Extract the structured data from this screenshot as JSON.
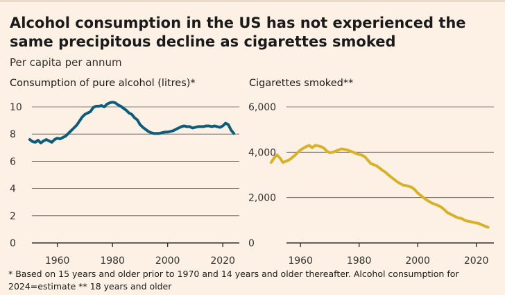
{
  "title": "Alcohol consumption in the US has not experienced the same precipitous decline as cigarettes smoked",
  "subtitle": "Per capita per annum",
  "footnote": {
    "line1": "* Based on 15 years and older prior to 1970 and 14 years and older thereafter. Alcohol consumption for",
    "line2": "2024=estimate  ** 18 years and older"
  },
  "colors": {
    "alcohol": "#0d5c7a",
    "cigarettes": "#d8b12a",
    "background": "#fdf1e5"
  },
  "chart_data": [
    {
      "type": "line",
      "title": "Consumption of pure alcohol (litres)*",
      "xlabel": "",
      "ylabel": "",
      "xlim": [
        1946,
        2026
      ],
      "ylim": [
        0,
        10
      ],
      "x_ticks": [
        1960,
        1980,
        2000,
        2020
      ],
      "x_tick_labels": [
        "1960",
        "1980",
        "2000",
        "2020"
      ],
      "y_ticks": [
        0,
        2,
        4,
        6,
        8,
        10
      ],
      "y_tick_labels": [
        "0",
        "2",
        "4",
        "6",
        "8",
        "10"
      ],
      "series": [
        {
          "name": "Alcohol",
          "x": [
            1950,
            1951,
            1952,
            1953,
            1954,
            1955,
            1956,
            1957,
            1958,
            1959,
            1960,
            1961,
            1962,
            1963,
            1964,
            1965,
            1966,
            1967,
            1968,
            1969,
            1970,
            1971,
            1972,
            1973,
            1974,
            1975,
            1976,
            1977,
            1978,
            1979,
            1980,
            1981,
            1982,
            1983,
            1984,
            1985,
            1986,
            1987,
            1988,
            1989,
            1990,
            1991,
            1992,
            1993,
            1994,
            1995,
            1996,
            1997,
            1998,
            1999,
            2000,
            2001,
            2002,
            2003,
            2004,
            2005,
            2006,
            2007,
            2008,
            2009,
            2010,
            2011,
            2012,
            2013,
            2014,
            2015,
            2016,
            2017,
            2018,
            2019,
            2020,
            2021,
            2022,
            2023,
            2024
          ],
          "values": [
            7.6,
            7.45,
            7.4,
            7.55,
            7.35,
            7.5,
            7.6,
            7.5,
            7.4,
            7.6,
            7.7,
            7.65,
            7.75,
            7.85,
            8.05,
            8.25,
            8.45,
            8.65,
            8.95,
            9.25,
            9.45,
            9.55,
            9.65,
            9.95,
            10.05,
            10.05,
            10.1,
            10.0,
            10.2,
            10.3,
            10.35,
            10.3,
            10.15,
            10.05,
            9.9,
            9.75,
            9.55,
            9.45,
            9.2,
            9.05,
            8.7,
            8.5,
            8.35,
            8.2,
            8.1,
            8.05,
            8.05,
            8.05,
            8.1,
            8.15,
            8.15,
            8.2,
            8.25,
            8.35,
            8.45,
            8.55,
            8.6,
            8.55,
            8.55,
            8.45,
            8.5,
            8.55,
            8.55,
            8.55,
            8.6,
            8.6,
            8.55,
            8.6,
            8.55,
            8.5,
            8.6,
            8.8,
            8.7,
            8.3,
            8.05
          ]
        }
      ]
    },
    {
      "type": "line",
      "title": "Cigarettes smoked**",
      "xlabel": "",
      "ylabel": "",
      "xlim": [
        1946,
        2026
      ],
      "ylim": [
        0,
        6000
      ],
      "x_ticks": [
        1960,
        1980,
        2000,
        2020
      ],
      "x_tick_labels": [
        "1960",
        "1980",
        "2000",
        "2020"
      ],
      "y_ticks": [
        0,
        2000,
        4000,
        6000
      ],
      "y_tick_labels": [
        "0",
        "2,000",
        "4,000",
        "6,000"
      ],
      "series": [
        {
          "name": "Cigarettes",
          "x": [
            1950,
            1951,
            1952,
            1953,
            1954,
            1955,
            1956,
            1957,
            1958,
            1959,
            1960,
            1961,
            1962,
            1963,
            1964,
            1965,
            1966,
            1967,
            1968,
            1969,
            1970,
            1971,
            1972,
            1973,
            1974,
            1975,
            1976,
            1977,
            1978,
            1979,
            1980,
            1981,
            1982,
            1983,
            1984,
            1985,
            1986,
            1987,
            1988,
            1989,
            1990,
            1991,
            1992,
            1993,
            1994,
            1995,
            1996,
            1997,
            1998,
            1999,
            2000,
            2001,
            2002,
            2003,
            2004,
            2005,
            2006,
            2007,
            2008,
            2009,
            2010,
            2011,
            2012,
            2013,
            2014,
            2015,
            2016,
            2017,
            2018,
            2019,
            2020,
            2021,
            2022,
            2023,
            2024
          ],
          "values": [
            3550,
            3750,
            3880,
            3750,
            3550,
            3600,
            3650,
            3750,
            3850,
            3980,
            4100,
            4180,
            4250,
            4300,
            4200,
            4300,
            4280,
            4250,
            4180,
            4050,
            3980,
            4000,
            4050,
            4100,
            4150,
            4130,
            4100,
            4050,
            4000,
            3950,
            3900,
            3870,
            3800,
            3650,
            3500,
            3450,
            3400,
            3300,
            3200,
            3120,
            3000,
            2900,
            2800,
            2700,
            2620,
            2550,
            2530,
            2500,
            2450,
            2350,
            2200,
            2100,
            2000,
            1900,
            1820,
            1750,
            1700,
            1650,
            1580,
            1480,
            1350,
            1280,
            1220,
            1150,
            1100,
            1080,
            1000,
            960,
            940,
            910,
            880,
            850,
            790,
            740,
            690
          ]
        }
      ]
    }
  ]
}
